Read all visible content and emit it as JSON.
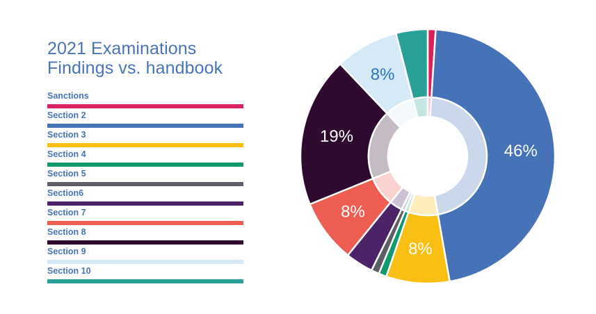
{
  "title_lines": [
    "2021 Examinations",
    "Findings vs. handbook"
  ],
  "colors": {
    "title_text": "#4a74b8",
    "data_label_light": "#ffffff",
    "data_label_dark": "#2a76c0"
  },
  "legend": [
    {
      "label": "Sanctions",
      "color": "#d9215e"
    },
    {
      "label": "Section 2",
      "color": "#4672b8"
    },
    {
      "label": "Section 3",
      "color": "#f9bf12"
    },
    {
      "label": "Section 4",
      "color": "#0f9a6e"
    },
    {
      "label": "Section 5",
      "color": "#5c5f66"
    },
    {
      "label": "Section6",
      "color": "#4b2366"
    },
    {
      "label": "Section 7",
      "color": "#ee5d52"
    },
    {
      "label": "Section 8",
      "color": "#2e0b2e"
    },
    {
      "label": "Section 9",
      "color": "#d6e9f7"
    },
    {
      "label": "Section 10",
      "color": "#2aa197"
    }
  ],
  "chart_data": {
    "type": "pie",
    "subtype": "donut",
    "title": "2021 Examinations Findings vs. handbook",
    "categories": [
      "Sanctions",
      "Section 2",
      "Section 3",
      "Section 4",
      "Section 5",
      "Section6",
      "Section 7",
      "Section 8",
      "Section 9",
      "Section 10"
    ],
    "values": [
      1,
      46,
      8,
      1,
      1,
      3.5,
      8,
      19,
      8,
      4
    ],
    "data_labels": [
      "",
      "46%",
      "8%",
      "",
      "",
      "",
      "8%",
      "19%",
      "8%",
      ""
    ],
    "legend_position": "left"
  }
}
